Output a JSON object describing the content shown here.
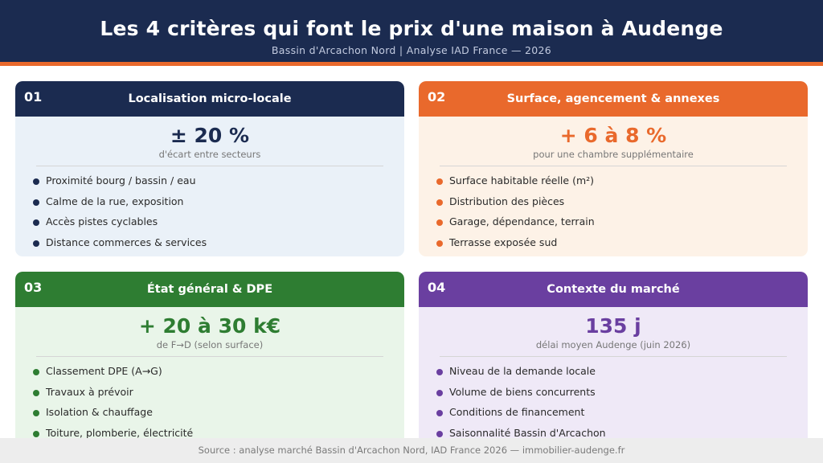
{
  "header": {
    "title": "Les 4 critères qui font le prix d'une maison à Audenge",
    "subtitle": "Bassin d'Arcachon Nord  |  Analyse IAD France — 2026"
  },
  "colors": {
    "navy": "#1b2b50",
    "orange": "#e9692c",
    "green": "#2e7d32",
    "purple": "#6a3fa0"
  },
  "cards": [
    {
      "number": "01",
      "title": "Localisation micro-locale",
      "stat": "± 20 %",
      "stat_label": "d'écart entre secteurs",
      "items": [
        "Proximité bourg / bassin / eau",
        "Calme de la rue, exposition",
        "Accès pistes cyclables",
        "Distance commerces & services"
      ]
    },
    {
      "number": "02",
      "title": "Surface, agencement & annexes",
      "stat": "+ 6 à 8 %",
      "stat_label": "pour une chambre supplémentaire",
      "items": [
        "Surface habitable réelle (m²)",
        "Distribution des pièces",
        "Garage, dépendance, terrain",
        "Terrasse exposée sud"
      ]
    },
    {
      "number": "03",
      "title": "État général & DPE",
      "stat": "+ 20 à 30 k€",
      "stat_label": "de F→D (selon surface)",
      "items": [
        "Classement DPE (A→G)",
        "Travaux à prévoir",
        "Isolation & chauffage",
        "Toiture, plomberie, électricité"
      ]
    },
    {
      "number": "04",
      "title": "Contexte du marché",
      "stat": "135 j",
      "stat_label": "délai moyen Audenge (juin 2026)",
      "items": [
        "Niveau de la demande locale",
        "Volume de biens concurrents",
        "Conditions de financement",
        "Saisonnalité Bassin d'Arcachon"
      ]
    }
  ],
  "footer": {
    "text": "Source : analyse marché Bassin d'Arcachon Nord, IAD France 2026  —  immobilier-audenge.fr"
  }
}
